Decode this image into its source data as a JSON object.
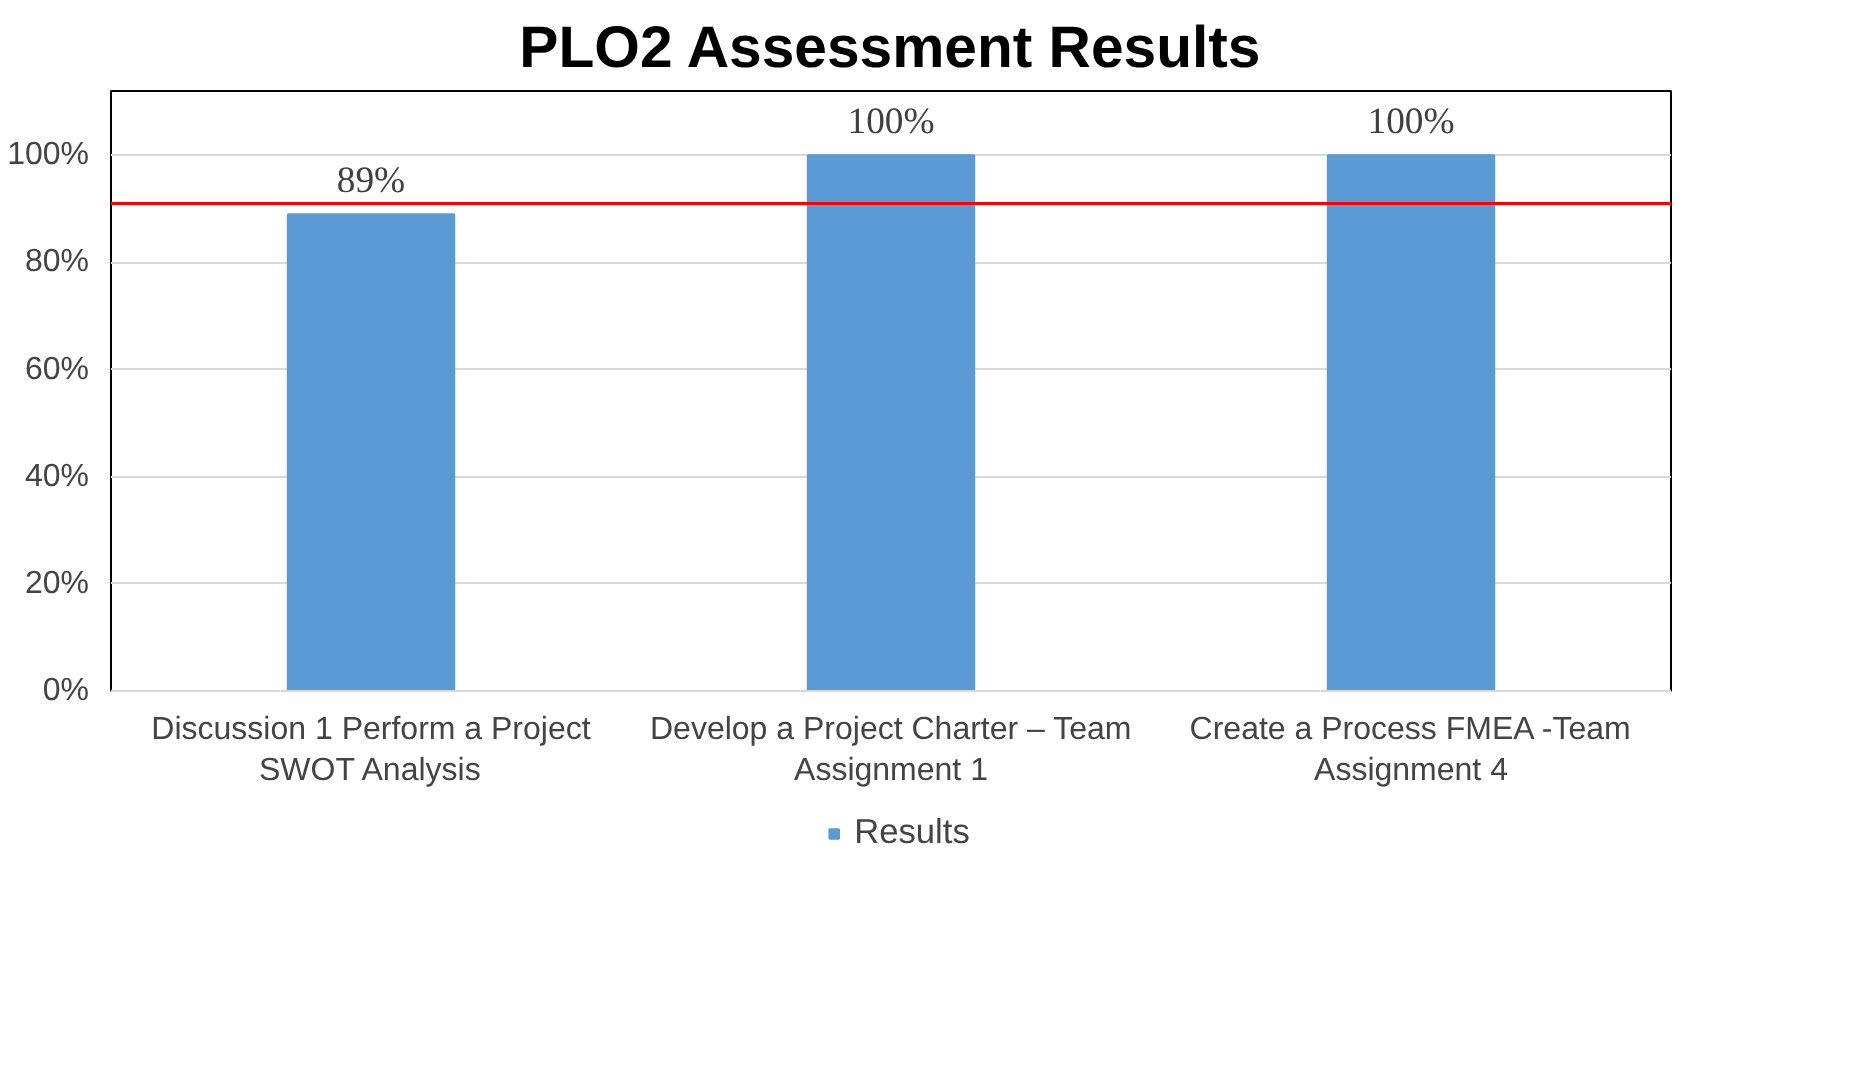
{
  "chart_data": {
    "type": "bar",
    "title": "PLO2 Assessment Results",
    "categories": [
      "Discussion 1 Perform a Project\nSWOT Analysis",
      "Develop a Project Charter – Team\nAssignment 1",
      "Create a Process FMEA -Team\nAssignment 4"
    ],
    "series": [
      {
        "name": "Results",
        "color": "#5b9bd5",
        "values": [
          0.89,
          1.0,
          1.0
        ],
        "value_labels": [
          "89%",
          "100%",
          "100%"
        ]
      }
    ],
    "ylim": [
      0,
      1.12
    ],
    "yticks": [
      {
        "value": 0,
        "label": "0%"
      },
      {
        "value": 0.2,
        "label": "20%"
      },
      {
        "value": 0.4,
        "label": "40%"
      },
      {
        "value": 0.6,
        "label": "60%"
      },
      {
        "value": 0.8,
        "label": "80%"
      },
      {
        "value": 1.0,
        "label": "100%"
      }
    ],
    "ref_lines": [
      {
        "axis": "y",
        "value": 0.91,
        "label": null,
        "color": "#ff0000"
      }
    ],
    "grid": "y",
    "legend": "bottom"
  }
}
